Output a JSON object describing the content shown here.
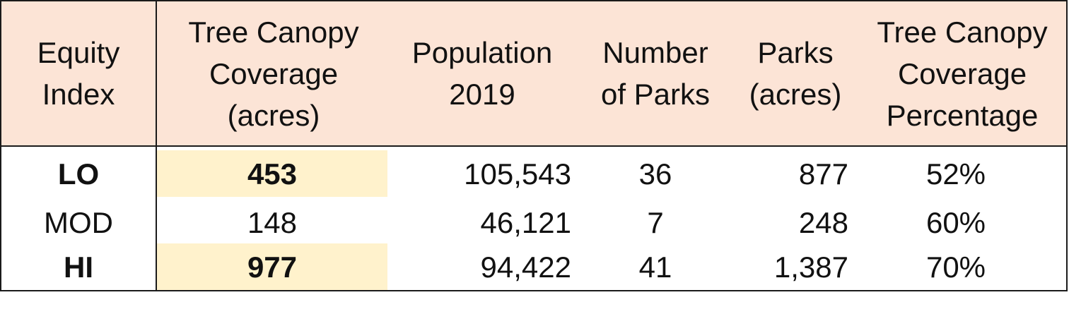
{
  "colors": {
    "header_bg": "#fce4d6",
    "highlight_bg": "#fff2cc",
    "border": "#1a1a1a"
  },
  "table": {
    "headers": [
      "Equity\nIndex",
      "Tree Canopy\nCoverage\n(acres)",
      "Population\n2019",
      "Number\nof Parks",
      "Parks\n(acres)",
      "Tree Canopy\nCoverage\nPercentage"
    ],
    "rows": [
      {
        "equity_index": "LO",
        "tree_canopy_acres": "453",
        "population_2019": "105,543",
        "number_of_parks": "36",
        "parks_acres": "877",
        "canopy_percentage": "52%",
        "highlighted": true
      },
      {
        "equity_index": "MOD",
        "tree_canopy_acres": "148",
        "population_2019": "46,121",
        "number_of_parks": "7",
        "parks_acres": "248",
        "canopy_percentage": "60%",
        "highlighted": false
      },
      {
        "equity_index": "HI",
        "tree_canopy_acres": "977",
        "population_2019": "94,422",
        "number_of_parks": "41",
        "parks_acres": "1,387",
        "canopy_percentage": "70%",
        "highlighted": true
      }
    ]
  }
}
